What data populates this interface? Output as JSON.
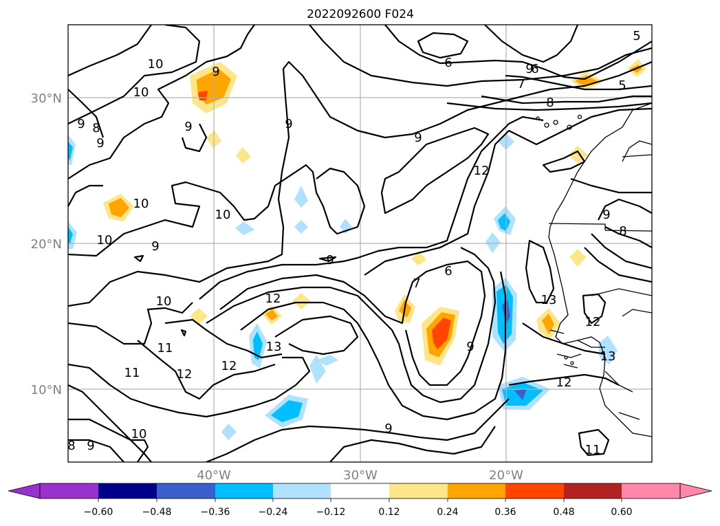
{
  "title": "2022092600 F024",
  "map": {
    "lat_ticks": [
      "30°N",
      "20°N",
      "10°N"
    ],
    "lon_ticks": [
      "40°W",
      "30°W",
      "20°W"
    ]
  },
  "colorbar": {
    "ticks": [
      "−0.60",
      "−0.48",
      "−0.36",
      "−0.24",
      "−0.12",
      "0.12",
      "0.24",
      "0.36",
      "0.48",
      "0.60"
    ],
    "colors": [
      "#9932cc",
      "#00008b",
      "#3a5fcd",
      "#00bfff",
      "#b0e2ff",
      "#ffffff",
      "#fde68a",
      "#ffa500",
      "#ff4500",
      "#b22222",
      "#ff88aa"
    ]
  },
  "contour_labels": [
    "5",
    "6",
    "6",
    "5",
    "7",
    "8",
    "10",
    "10",
    "9",
    "9",
    "9",
    "8",
    "9",
    "9",
    "12",
    "10",
    "10",
    "10",
    "9",
    "9",
    "9",
    "7",
    "6",
    "8",
    "10",
    "12",
    "13",
    "12",
    "11",
    "11",
    "12",
    "13",
    "9",
    "12",
    "12",
    "13",
    "9",
    "11",
    "10",
    "9",
    "8",
    "9",
    "9"
  ]
}
